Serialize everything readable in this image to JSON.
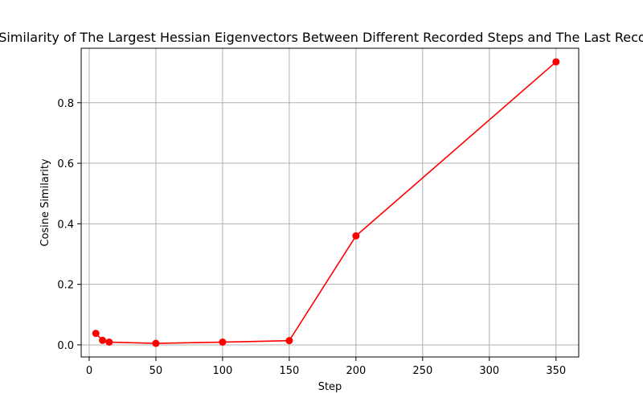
{
  "chart_data": {
    "type": "line",
    "title": "Cosine Similarity of The Largest Hessian Eigenvectors Between Different Recorded Steps and The Last Recorded Step",
    "xlabel": "Step",
    "ylabel": "Cosine Similarity",
    "xlim": [
      -6,
      367
    ],
    "ylim": [
      -0.04,
      0.98
    ],
    "xticks": [
      0,
      50,
      100,
      150,
      200,
      250,
      300,
      350
    ],
    "yticks": [
      0.0,
      0.2,
      0.4,
      0.6,
      0.8
    ],
    "xtick_labels": [
      "0",
      "50",
      "100",
      "150",
      "200",
      "250",
      "300",
      "350"
    ],
    "ytick_labels": [
      "0.0",
      "0.2",
      "0.4",
      "0.6",
      "0.8"
    ],
    "grid": true,
    "series": [
      {
        "color": "#ff0000",
        "marker": "circle",
        "x": [
          5,
          10,
          15,
          50,
          100,
          150,
          200,
          350
        ],
        "y": [
          0.038,
          0.015,
          0.009,
          0.005,
          0.009,
          0.014,
          0.36,
          0.935
        ]
      }
    ]
  }
}
